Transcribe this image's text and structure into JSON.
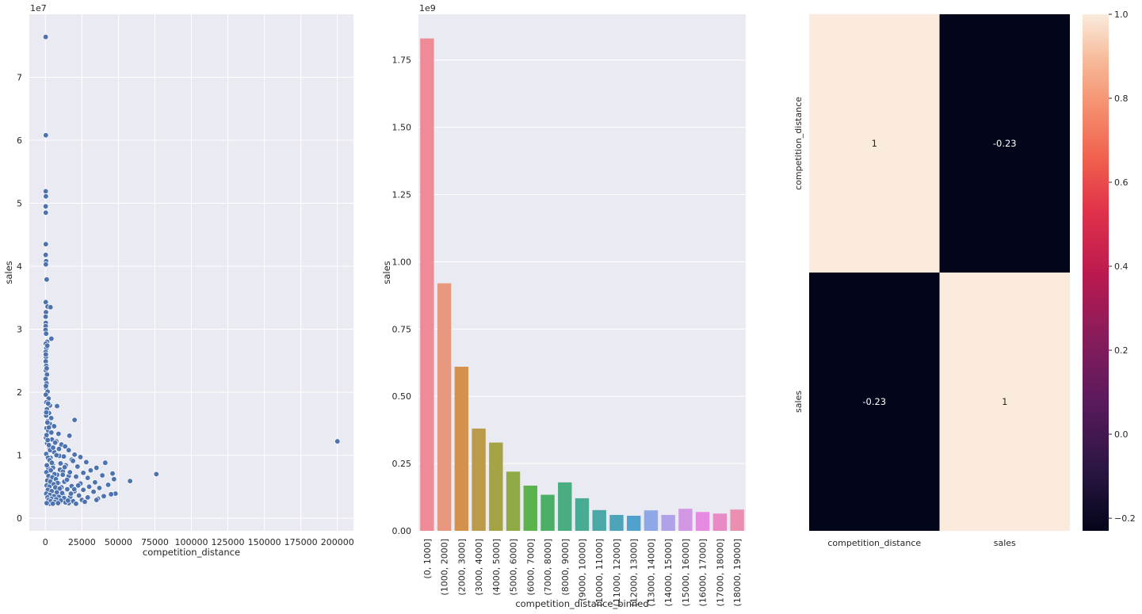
{
  "chart_data": [
    {
      "type": "scatter",
      "title": "",
      "xlabel": "competition_distance",
      "ylabel": "sales",
      "y_offset_label": "1e7",
      "xlim": [
        -11000,
        211000
      ],
      "ylim": [
        -2000000,
        80000000
      ],
      "x_ticks": [
        0,
        25000,
        50000,
        75000,
        100000,
        125000,
        150000,
        175000,
        200000
      ],
      "x_tick_labels": [
        "0",
        "25000",
        "50000",
        "75000",
        "100000",
        "125000",
        "150000",
        "175000",
        "200000"
      ],
      "y_ticks": [
        0,
        10000000,
        20000000,
        30000000,
        40000000,
        50000000,
        60000000,
        70000000
      ],
      "y_tick_labels": [
        "0",
        "1",
        "2",
        "3",
        "4",
        "5",
        "6",
        "7"
      ],
      "point_color": "#4c72b0",
      "points": [
        [
          200,
          76400000
        ],
        [
          300,
          60800000
        ],
        [
          250,
          51900000
        ],
        [
          350,
          51100000
        ],
        [
          200,
          49500000
        ],
        [
          280,
          48500000
        ],
        [
          300,
          43500000
        ],
        [
          200,
          41800000
        ],
        [
          500,
          40800000
        ],
        [
          320,
          40300000
        ],
        [
          900,
          37900000
        ],
        [
          250,
          34300000
        ],
        [
          1500,
          33600000
        ],
        [
          3500,
          33500000
        ],
        [
          400,
          32700000
        ],
        [
          180,
          32000000
        ],
        [
          300,
          31000000
        ],
        [
          230,
          30500000
        ],
        [
          150,
          29900000
        ],
        [
          500,
          29300000
        ],
        [
          4100,
          28500000
        ],
        [
          1200,
          28000000
        ],
        [
          300,
          27700000
        ],
        [
          700,
          27000000
        ],
        [
          200,
          26400000
        ],
        [
          400,
          25600000
        ],
        [
          250,
          24900000
        ],
        [
          600,
          24200000
        ],
        [
          300,
          23500000
        ],
        [
          1100,
          22800000
        ],
        [
          200,
          22100000
        ],
        [
          800,
          21400000
        ],
        [
          500,
          20700000
        ],
        [
          1500,
          20100000
        ],
        [
          300,
          19600000
        ],
        [
          2200,
          19000000
        ],
        [
          700,
          18400000
        ],
        [
          3100,
          17900000
        ],
        [
          8000,
          17800000
        ],
        [
          1000,
          17300000
        ],
        [
          2500,
          16700000
        ],
        [
          500,
          16300000
        ],
        [
          4000,
          15900000
        ],
        [
          20000,
          15600000
        ],
        [
          1500,
          15400000
        ],
        [
          3000,
          15000000
        ],
        [
          6000,
          14600000
        ],
        [
          800,
          14300000
        ],
        [
          2000,
          13900000
        ],
        [
          9000,
          13400000
        ],
        [
          16500,
          13100000
        ],
        [
          400,
          12800000
        ],
        [
          4500,
          12500000
        ],
        [
          7500,
          12200000
        ],
        [
          1200,
          11900000
        ],
        [
          11000,
          11700000
        ],
        [
          13500,
          11400000
        ],
        [
          2800,
          11100000
        ],
        [
          16000,
          10800000
        ],
        [
          6000,
          10500000
        ],
        [
          20000,
          10100000
        ],
        [
          9500,
          9900000
        ],
        [
          24000,
          9700000
        ],
        [
          3500,
          9600000
        ],
        [
          18000,
          9300000
        ],
        [
          28000,
          8900000
        ],
        [
          41000,
          8800000
        ],
        [
          5000,
          8500000
        ],
        [
          14000,
          8400000
        ],
        [
          22000,
          8200000
        ],
        [
          35000,
          8000000
        ],
        [
          2000,
          7900000
        ],
        [
          10000,
          7700000
        ],
        [
          31000,
          7600000
        ],
        [
          12000,
          7400000
        ],
        [
          26000,
          7200000
        ],
        [
          46000,
          7100000
        ],
        [
          76000,
          7000000
        ],
        [
          8000,
          6900000
        ],
        [
          39000,
          6800000
        ],
        [
          16000,
          6700000
        ],
        [
          21000,
          6600000
        ],
        [
          29000,
          6400000
        ],
        [
          4000,
          6300000
        ],
        [
          47000,
          6200000
        ],
        [
          58000,
          5900000
        ],
        [
          13000,
          5800000
        ],
        [
          34000,
          5700000
        ],
        [
          9000,
          5600000
        ],
        [
          24000,
          5500000
        ],
        [
          43000,
          5300000
        ],
        [
          6000,
          5200000
        ],
        [
          18000,
          5100000
        ],
        [
          30000,
          5000000
        ],
        [
          11000,
          4900000
        ],
        [
          37000,
          4800000
        ],
        [
          2500,
          4700000
        ],
        [
          15000,
          4600000
        ],
        [
          26000,
          4500000
        ],
        [
          7000,
          4400000
        ],
        [
          20000,
          4300000
        ],
        [
          33000,
          4200000
        ],
        [
          48000,
          3900000
        ],
        [
          45000,
          3800000
        ],
        [
          4000,
          3800000
        ],
        [
          12000,
          3700000
        ],
        [
          23000,
          3600000
        ],
        [
          40000,
          3500000
        ],
        [
          17000,
          3400000
        ],
        [
          29000,
          3300000
        ],
        [
          8000,
          3200000
        ],
        [
          36000,
          3100000
        ],
        [
          14000,
          3000000
        ],
        [
          25000,
          2900000
        ],
        [
          35000,
          2900000
        ],
        [
          5500,
          2800000
        ],
        [
          19000,
          2700000
        ],
        [
          27000,
          2600000
        ],
        [
          10000,
          2600000
        ],
        [
          2000,
          2500000
        ],
        [
          16000,
          2400000
        ],
        [
          21000,
          2300000
        ],
        [
          3000,
          2300000
        ],
        [
          200000,
          12200000
        ],
        [
          800,
          13200000
        ],
        [
          1600,
          12400000
        ],
        [
          2400,
          11600000
        ],
        [
          3200,
          10800000
        ],
        [
          600,
          10200000
        ],
        [
          1800,
          9600000
        ],
        [
          2900,
          9200000
        ],
        [
          4400,
          8800000
        ],
        [
          1000,
          8400000
        ],
        [
          5200,
          8000000
        ],
        [
          3700,
          7600000
        ],
        [
          700,
          7300000
        ],
        [
          6200,
          7000000
        ],
        [
          2100,
          6700000
        ],
        [
          4800,
          6500000
        ],
        [
          7200,
          6200000
        ],
        [
          1300,
          6000000
        ],
        [
          3400,
          5800000
        ],
        [
          8400,
          5600000
        ],
        [
          5600,
          5400000
        ],
        [
          900,
          5200000
        ],
        [
          2700,
          5000000
        ],
        [
          6800,
          4900000
        ],
        [
          9800,
          4700000
        ],
        [
          1700,
          4500000
        ],
        [
          4300,
          4300000
        ],
        [
          7800,
          4100000
        ],
        [
          11500,
          4000000
        ],
        [
          600,
          3900000
        ],
        [
          3000,
          3700000
        ],
        [
          5900,
          3500000
        ],
        [
          9200,
          3400000
        ],
        [
          1500,
          3300000
        ],
        [
          12800,
          3200000
        ],
        [
          4000,
          3100000
        ],
        [
          7400,
          3000000
        ],
        [
          2200,
          2900000
        ],
        [
          10600,
          2800000
        ],
        [
          3600,
          2700000
        ],
        [
          6500,
          2600000
        ],
        [
          13800,
          2500000
        ],
        [
          900,
          2400000
        ],
        [
          8700,
          2400000
        ],
        [
          5100,
          2300000
        ],
        [
          15500,
          2800000
        ],
        [
          17500,
          3900000
        ],
        [
          19800,
          4600000
        ],
        [
          22500,
          5200000
        ],
        [
          14800,
          6100000
        ],
        [
          11900,
          6900000
        ],
        [
          16800,
          7300000
        ],
        [
          13200,
          8100000
        ],
        [
          10400,
          8700000
        ],
        [
          18900,
          9100000
        ],
        [
          7600,
          10000000
        ],
        [
          12600,
          9800000
        ],
        [
          5300,
          11200000
        ],
        [
          9300,
          11000000
        ],
        [
          6700,
          12000000
        ],
        [
          4100,
          13600000
        ],
        [
          2400,
          14400000
        ],
        [
          1400,
          15200000
        ],
        [
          600,
          16800000
        ],
        [
          1900,
          18200000
        ],
        [
          400,
          21000000
        ],
        [
          900,
          23800000
        ],
        [
          300,
          26000000
        ],
        [
          1300,
          27400000
        ]
      ]
    },
    {
      "type": "bar",
      "title": "",
      "xlabel": "competition_distance_binned",
      "ylabel": "sales",
      "y_offset_label": "1e9",
      "ylim": [
        0,
        1920000000
      ],
      "y_ticks": [
        0,
        250000000,
        500000000,
        750000000,
        1000000000,
        1250000000,
        1500000000,
        1750000000
      ],
      "y_tick_labels": [
        "0.00",
        "0.25",
        "0.50",
        "0.75",
        "1.00",
        "1.25",
        "1.50",
        "1.75"
      ],
      "categories": [
        "(0, 1000]",
        "(1000, 2000]",
        "(2000, 3000]",
        "(3000, 4000]",
        "(4000, 5000]",
        "(5000, 6000]",
        "(6000, 7000]",
        "(7000, 8000]",
        "(8000, 9000]",
        "(9000, 10000]",
        "(10000, 11000]",
        "(11000, 12000]",
        "(12000, 13000]",
        "(13000, 14000]",
        "(14000, 15000]",
        "(15000, 16000]",
        "(16000, 17000]",
        "(17000, 18000]",
        "(18000, 19000]"
      ],
      "values": [
        1830000000,
        920000000,
        610000000,
        380000000,
        328000000,
        220000000,
        168000000,
        134000000,
        180000000,
        121000000,
        77000000,
        59000000,
        56000000,
        76000000,
        59000000,
        82000000,
        70000000,
        64000000,
        79000000
      ],
      "colors": [
        "#ee8b97",
        "#e99880",
        "#d4914e",
        "#bb9b49",
        "#a6a346",
        "#8eaa44",
        "#5ab34b",
        "#4bb066",
        "#4aad82",
        "#4aab95",
        "#4ba8a6",
        "#4da4b9",
        "#50a1cd",
        "#8ea8e7",
        "#b0a1e8",
        "#d397e5",
        "#e78be2",
        "#e88bc4",
        "#ea8fb0"
      ]
    },
    {
      "type": "heatmap",
      "title": "",
      "x_labels": [
        "competition_distance",
        "sales"
      ],
      "y_labels": [
        "competition_distance",
        "sales"
      ],
      "matrix": [
        [
          1,
          -0.23
        ],
        [
          -0.23,
          1
        ]
      ],
      "annotations": [
        [
          "1",
          "-0.23"
        ],
        [
          "-0.23",
          "1"
        ]
      ],
      "colorbar_range": [
        -0.23,
        1
      ],
      "colorbar_ticks": [
        -0.2,
        0,
        0.2,
        0.4,
        0.6,
        0.8,
        1.0
      ],
      "colorbar_tick_labels": [
        "−0.2",
        "0.0",
        "0.2",
        "0.4",
        "0.6",
        "0.8",
        "1.0"
      ],
      "cell_colors": {
        "high": "#faebdd",
        "low": "#03051a"
      },
      "annotation_colors": {
        "on_high": "#262626",
        "on_low": "#ffffff"
      }
    }
  ],
  "theme": {
    "axes_bg": "#eaeaf2",
    "grid_color": "#ffffff",
    "text_color": "#262626"
  }
}
